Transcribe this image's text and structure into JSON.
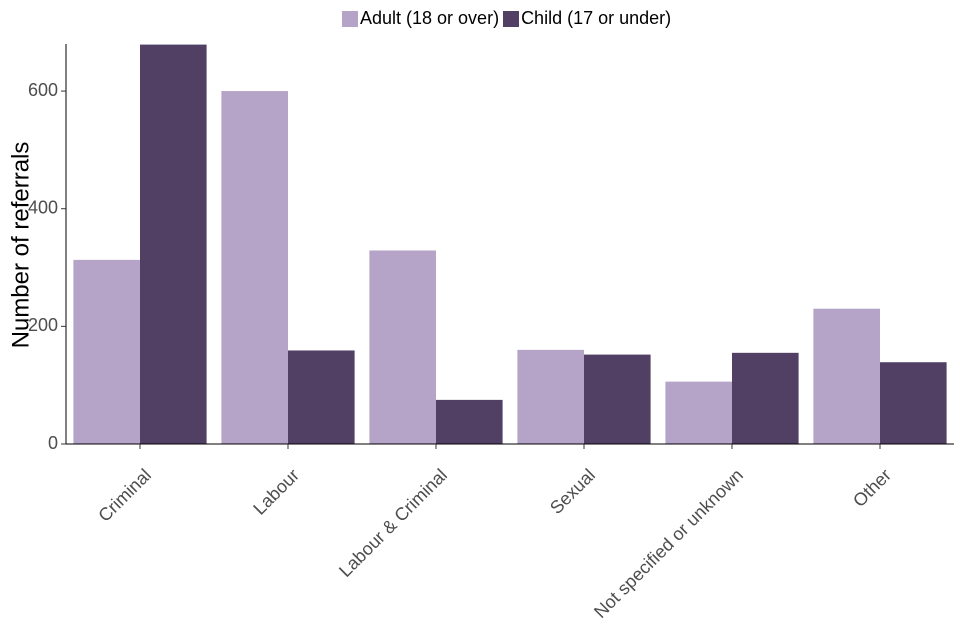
{
  "chart_data": {
    "type": "bar",
    "title": "",
    "xlabel": "",
    "ylabel": "Number of referrals",
    "ylim": [
      0,
      680
    ],
    "yticks": [
      0,
      200,
      400,
      600
    ],
    "categories": [
      "Criminal",
      "Labour",
      "Labour & Criminal",
      "Sexual",
      "Not specified or unknown",
      "Other"
    ],
    "series": [
      {
        "name": "Adult (18 or over)",
        "color": "#b5a4c8",
        "values": [
          313,
          600,
          329,
          160,
          106,
          230
        ]
      },
      {
        "name": "Child (17 or under)",
        "color": "#523f64",
        "values": [
          679,
          159,
          75,
          152,
          155,
          139
        ]
      }
    ],
    "legend": "top",
    "grid": false
  }
}
